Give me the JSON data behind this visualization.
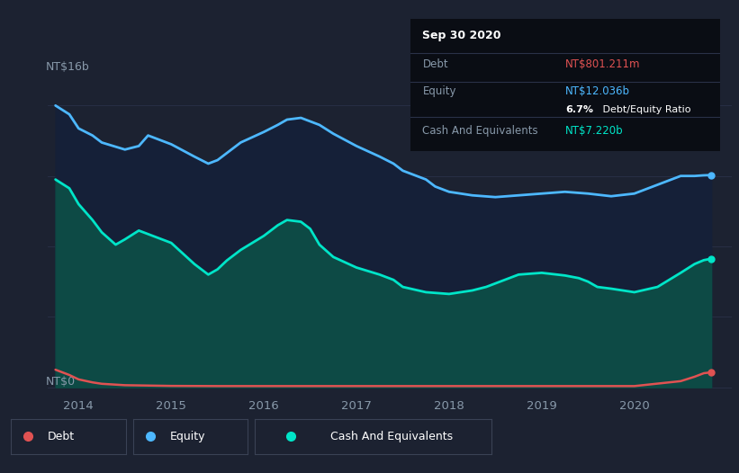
{
  "bg_color": "#1c2231",
  "plot_bg_color": "#1c2231",
  "title_box": {
    "date": "Sep 30 2020",
    "debt_label": "Debt",
    "debt_value": "NT$801.211m",
    "debt_color": "#e05252",
    "equity_label": "Equity",
    "equity_value": "NT$12.036b",
    "equity_color": "#4db8ff",
    "ratio_bold": "6.7%",
    "ratio_rest": " Debt/Equity Ratio",
    "cash_label": "Cash And Equivalents",
    "cash_value": "NT$7.220b",
    "cash_color": "#00e5c8",
    "box_bg": "#0a0d14"
  },
  "ylabel_top": "NT$16b",
  "ylabel_bottom": "NT$0",
  "grid_color": "#2a3148",
  "tick_color": "#8899aa",
  "xlim": [
    2013.67,
    2021.05
  ],
  "ylim": [
    -0.3,
    18.5
  ],
  "xticks": [
    2014,
    2015,
    2016,
    2017,
    2018,
    2019,
    2020
  ],
  "equity_x": [
    2013.75,
    2013.9,
    2014.0,
    2014.15,
    2014.25,
    2014.5,
    2014.65,
    2014.75,
    2015.0,
    2015.25,
    2015.4,
    2015.5,
    2015.6,
    2015.75,
    2016.0,
    2016.15,
    2016.25,
    2016.4,
    2016.5,
    2016.6,
    2016.75,
    2017.0,
    2017.25,
    2017.4,
    2017.5,
    2017.75,
    2017.85,
    2018.0,
    2018.25,
    2018.5,
    2018.75,
    2019.0,
    2019.25,
    2019.5,
    2019.75,
    2020.0,
    2020.25,
    2020.5,
    2020.65,
    2020.75,
    2020.83
  ],
  "equity_y": [
    16.0,
    15.5,
    14.7,
    14.3,
    13.9,
    13.5,
    13.7,
    14.3,
    13.8,
    13.1,
    12.7,
    12.9,
    13.3,
    13.9,
    14.5,
    14.9,
    15.2,
    15.3,
    15.1,
    14.9,
    14.4,
    13.7,
    13.1,
    12.7,
    12.3,
    11.8,
    11.4,
    11.1,
    10.9,
    10.8,
    10.9,
    11.0,
    11.1,
    11.0,
    10.85,
    11.0,
    11.5,
    12.0,
    12.0,
    12.036,
    12.05
  ],
  "cash_x": [
    2013.75,
    2013.9,
    2014.0,
    2014.15,
    2014.25,
    2014.4,
    2014.5,
    2014.65,
    2014.75,
    2015.0,
    2015.25,
    2015.4,
    2015.5,
    2015.6,
    2015.75,
    2016.0,
    2016.15,
    2016.25,
    2016.4,
    2016.5,
    2016.6,
    2016.75,
    2017.0,
    2017.25,
    2017.4,
    2017.5,
    2017.75,
    2018.0,
    2018.25,
    2018.4,
    2018.5,
    2018.6,
    2018.75,
    2019.0,
    2019.25,
    2019.4,
    2019.5,
    2019.6,
    2019.75,
    2020.0,
    2020.25,
    2020.5,
    2020.65,
    2020.75,
    2020.83
  ],
  "cash_y": [
    11.8,
    11.3,
    10.4,
    9.5,
    8.8,
    8.1,
    8.4,
    8.9,
    8.7,
    8.2,
    7.0,
    6.4,
    6.7,
    7.2,
    7.8,
    8.6,
    9.2,
    9.5,
    9.4,
    9.0,
    8.1,
    7.4,
    6.8,
    6.4,
    6.1,
    5.7,
    5.4,
    5.3,
    5.5,
    5.7,
    5.9,
    6.1,
    6.4,
    6.5,
    6.35,
    6.2,
    6.0,
    5.7,
    5.6,
    5.4,
    5.7,
    6.5,
    7.0,
    7.22,
    7.3
  ],
  "debt_x": [
    2013.75,
    2013.9,
    2014.0,
    2014.15,
    2014.25,
    2014.5,
    2014.75,
    2015.0,
    2015.5,
    2016.0,
    2016.5,
    2017.0,
    2017.5,
    2018.0,
    2018.5,
    2019.0,
    2019.5,
    2020.0,
    2020.5,
    2020.65,
    2020.75,
    2020.83
  ],
  "debt_y": [
    1.0,
    0.7,
    0.45,
    0.28,
    0.2,
    0.12,
    0.1,
    0.08,
    0.07,
    0.07,
    0.07,
    0.07,
    0.07,
    0.07,
    0.07,
    0.07,
    0.07,
    0.07,
    0.35,
    0.6,
    0.801,
    0.85
  ],
  "equity_line_color": "#4db8ff",
  "cash_line_color": "#00e5c8",
  "debt_line_color": "#e05252",
  "equity_fill_dark": "#152038",
  "cash_fill_teal": "#0d4a45",
  "line_width": 2.0
}
